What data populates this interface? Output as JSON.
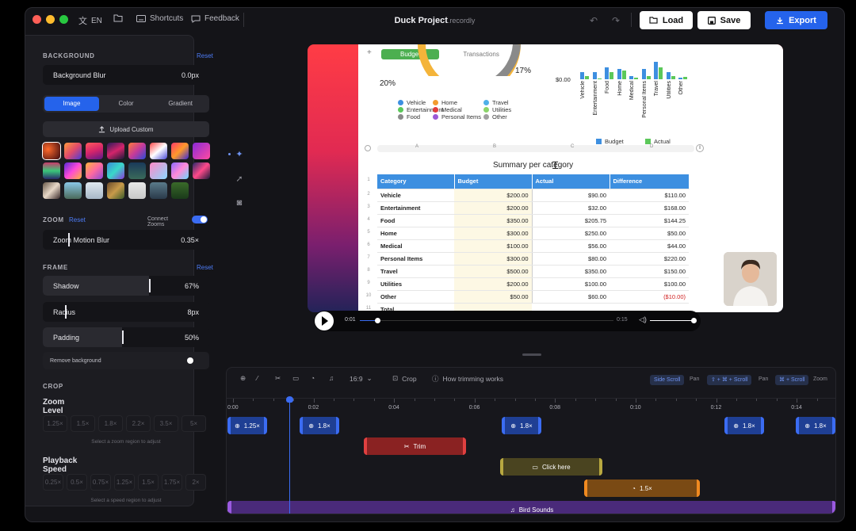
{
  "topbar": {
    "language": "EN",
    "shortcuts": "Shortcuts",
    "feedback": "Feedback",
    "project_name": "Duck Project",
    "project_ext": ".recordly",
    "load": "Load",
    "save": "Save",
    "export": "Export"
  },
  "panel": {
    "background": {
      "title": "BACKGROUND",
      "reset": "Reset",
      "blur_label": "Background Blur",
      "blur_value": "0.0px",
      "tabs": [
        "Image",
        "Color",
        "Gradient"
      ],
      "upload": "Upload Custom"
    },
    "zoom": {
      "title": "ZOOM",
      "reset": "Reset",
      "connect": "Connect Zooms",
      "connect_on": true,
      "motion_blur_label": "Zoom Motion Blur",
      "motion_blur_value": "0.35×"
    },
    "frame": {
      "title": "FRAME",
      "reset": "Reset",
      "shadow_label": "Shadow",
      "shadow_value": "67%",
      "shadow_level": 0.67,
      "radius_label": "Radius",
      "radius_value": "8px",
      "padding_label": "Padding",
      "padding_value": "50%",
      "padding_level": 0.5,
      "remove_bg": "Remove background"
    },
    "crop": {
      "title": "CROP",
      "zoom_level": "Zoom Level",
      "zoom_options": [
        "1.25×",
        "1.5×",
        "1.8×",
        "2.2×",
        "3.5×",
        "5×"
      ],
      "zoom_hint": "Select a zoom region to adjust",
      "playback_speed": "Playback Speed",
      "speed_options": [
        "0.25×",
        "0.5×",
        "0.75×",
        "1.25×",
        "1.5×",
        "1.75×",
        "2×"
      ],
      "speed_hint": "Select a speed region to adjust"
    }
  },
  "preview": {
    "tabs": [
      "Budget",
      "Transactions"
    ],
    "pie_pct_left": "20%",
    "pie_pct_right": "17%",
    "axis_zero": "$0.00",
    "legend": [
      {
        "label": "Vehicle",
        "color": "#3d8fe0"
      },
      {
        "label": "Entertainment",
        "color": "#5cc85a"
      },
      {
        "label": "Food",
        "color": "#8a8a8a"
      },
      {
        "label": "Home",
        "color": "#f29b2e"
      },
      {
        "label": "Medical",
        "color": "#e23c3c"
      },
      {
        "label": "Personal Items",
        "color": "#9b59d6"
      },
      {
        "label": "Travel",
        "color": "#4fb0e8"
      },
      {
        "label": "Utilities",
        "color": "#8bd46a"
      },
      {
        "label": "Other",
        "color": "#a0a0a0"
      }
    ],
    "bar_categories": [
      "Vehicle",
      "Entertainment",
      "Food",
      "Home",
      "Medical",
      "Personal Items",
      "Travel",
      "Utilities",
      "Other"
    ],
    "bar_legend": [
      "Budget",
      "Actual"
    ],
    "col_letters": [
      "A",
      "B",
      "C",
      "D"
    ],
    "table_title": "Summary per category",
    "headers": [
      "Category",
      "Budget",
      "Actual",
      "Difference"
    ],
    "rows": [
      [
        "Vehicle",
        "$200.00",
        "$90.00",
        "$110.00"
      ],
      [
        "Entertainment",
        "$200.00",
        "$32.00",
        "$168.00"
      ],
      [
        "Food",
        "$350.00",
        "$205.75",
        "$144.25"
      ],
      [
        "Home",
        "$300.00",
        "$250.00",
        "$50.00"
      ],
      [
        "Medical",
        "$100.00",
        "$56.00",
        "$44.00"
      ],
      [
        "Personal Items",
        "$300.00",
        "$80.00",
        "$220.00"
      ],
      [
        "Travel",
        "$500.00",
        "$350.00",
        "$150.00"
      ],
      [
        "Utilities",
        "$200.00",
        "$100.00",
        "$100.00"
      ],
      [
        "Other",
        "$50.00",
        "$60.00",
        "($10.00)"
      ]
    ],
    "total_label": "Total",
    "row_numbers": [
      "1",
      "2",
      "3",
      "4",
      "5",
      "6",
      "7",
      "8",
      "9",
      "10",
      "11"
    ]
  },
  "player": {
    "current": "0:01",
    "duration": "0:15",
    "progress": 0.07,
    "volume": 0.95
  },
  "timeline": {
    "aspect": "16:9",
    "crop": "Crop",
    "how_trim": "How trimming works",
    "side_scroll_key": "Side Scroll",
    "side_scroll_action": "Pan",
    "scroll_key": "⇧ + ⌘ + Scroll",
    "scroll_action": "Pan",
    "zoom_key": "⌘ + Scroll",
    "zoom_action": "Zoom",
    "ticks": [
      "0:00",
      "0:02",
      "0:04",
      "0:06",
      "0:08",
      "0:10",
      "0:12",
      "0:14"
    ],
    "zoom_clips": [
      "1.25×",
      "1.8×",
      "1.8×",
      "1.8×",
      "1.8×"
    ],
    "trim_label": "Trim",
    "annotation_label": "Click here",
    "speed_label": "1.5×",
    "audio_label": "Bird Sounds"
  }
}
